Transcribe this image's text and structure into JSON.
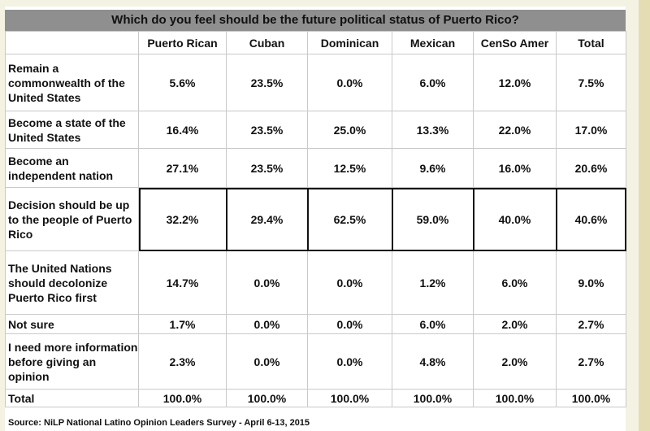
{
  "chart_data": {
    "type": "table",
    "title": "Which do you feel should be the future political status of Puerto Rico?",
    "columns": [
      "Puerto Rican",
      "Cuban",
      "Dominican",
      "Mexican",
      "CenSo Amer",
      "Total"
    ],
    "rows": [
      {
        "label": "Remain a commonwealth of the United States",
        "values": [
          "5.6%",
          "23.5%",
          "0.0%",
          "6.0%",
          "12.0%",
          "7.5%"
        ]
      },
      {
        "label": "Become a state of the United States",
        "values": [
          "16.4%",
          "23.5%",
          "25.0%",
          "13.3%",
          "22.0%",
          "17.0%"
        ]
      },
      {
        "label": "Become an independent nation",
        "values": [
          "27.1%",
          "23.5%",
          "12.5%",
          "9.6%",
          "16.0%",
          "20.6%"
        ]
      },
      {
        "label": "Decision should be up to the people of Puerto Rico",
        "values": [
          "32.2%",
          "29.4%",
          "62.5%",
          "59.0%",
          "40.0%",
          "40.6%"
        ]
      },
      {
        "label": "The United Nations should decolonize Puerto Rico first",
        "values": [
          "14.7%",
          "0.0%",
          "0.0%",
          "1.2%",
          "6.0%",
          "9.0%"
        ]
      },
      {
        "label": "Not sure",
        "values": [
          "1.7%",
          "0.0%",
          "0.0%",
          "6.0%",
          "2.0%",
          "2.7%"
        ]
      },
      {
        "label": "I need more information before giving an opinion",
        "values": [
          "2.3%",
          "0.0%",
          "0.0%",
          "4.8%",
          "2.0%",
          "2.7%"
        ]
      },
      {
        "label": "Total",
        "values": [
          "100.0%",
          "100.0%",
          "100.0%",
          "100.0%",
          "100.0%",
          "100.0%"
        ]
      }
    ],
    "highlighted_row": "Decision should be up to the people of Puerto Rico",
    "source": "Source: NiLP National Latino Opinion Leaders Survey - April 6-13, 2015",
    "colors": {
      "title_bar": "#8f8f8f",
      "grid": "#c9c9c9",
      "background": "#f4f2e3"
    }
  }
}
